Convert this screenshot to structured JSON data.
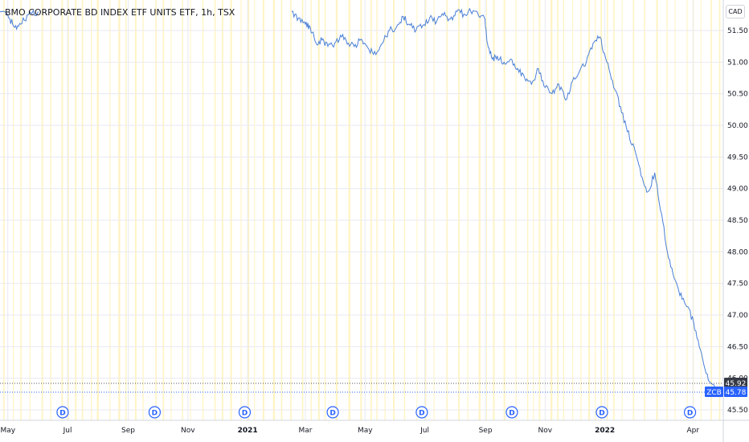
{
  "title": "BMO CORPORATE BD INDEX ETF UNITS ETF, 1h, TSX",
  "currency_button": "CAD",
  "ticker": "ZCB",
  "last_price_label": "45.78",
  "marker_price_label": "45.92",
  "dividend_marker_label": "D",
  "colors": {
    "line": "#4a7fd6",
    "grid": "#e8eaf0",
    "session_band": "#fff4c4",
    "ticker_bg": "#2962ff",
    "marker_bg": "#363a45"
  },
  "chart_data": {
    "type": "line",
    "title": "BMO CORPORATE BD INDEX ETF UNITS ETF, 1h, TSX",
    "xlabel": "",
    "ylabel": "",
    "ylim": [
      45.3,
      51.8
    ],
    "y_ticks": [
      "45.50",
      "46.00",
      "46.50",
      "47.00",
      "47.50",
      "48.00",
      "48.50",
      "49.00",
      "49.50",
      "50.00",
      "50.50",
      "51.00",
      "51.50"
    ],
    "x_ticks": [
      {
        "label": "May",
        "date": "2020-05",
        "bold": false
      },
      {
        "label": "Jul",
        "date": "2020-07",
        "bold": false
      },
      {
        "label": "Sep",
        "date": "2020-09",
        "bold": false
      },
      {
        "label": "Nov",
        "date": "2020-11",
        "bold": false
      },
      {
        "label": "2021",
        "date": "2021-01",
        "bold": true
      },
      {
        "label": "Mar",
        "date": "2021-03",
        "bold": false
      },
      {
        "label": "May",
        "date": "2021-05",
        "bold": false
      },
      {
        "label": "Jul",
        "date": "2021-07",
        "bold": false
      },
      {
        "label": "Sep",
        "date": "2021-09",
        "bold": false
      },
      {
        "label": "Nov",
        "date": "2021-11",
        "bold": false
      },
      {
        "label": "2022",
        "date": "2022-01",
        "bold": true
      },
      {
        "label": "Apr",
        "date": "2022-04",
        "bold": false
      }
    ],
    "grid": true,
    "dividend_dates": [
      "2020-06-26",
      "2020-09-28",
      "2020-12-29",
      "2021-03-29",
      "2021-06-28",
      "2021-09-28",
      "2021-12-29",
      "2022-03-29"
    ],
    "series": [
      {
        "name": "ZCB",
        "x": [
          "2020-04-23",
          "2020-05-02",
          "2020-05-08",
          "2020-05-14",
          "2020-05-22",
          "2020-06-01",
          "2021-02-15",
          "2021-02-22",
          "2021-03-01",
          "2021-03-06",
          "2021-03-12",
          "2021-03-18",
          "2021-03-24",
          "2021-03-31",
          "2021-04-07",
          "2021-04-14",
          "2021-04-21",
          "2021-04-28",
          "2021-05-05",
          "2021-05-12",
          "2021-05-19",
          "2021-05-26",
          "2021-06-02",
          "2021-06-09",
          "2021-06-15",
          "2021-06-22",
          "2021-06-29",
          "2021-07-06",
          "2021-07-13",
          "2021-07-20",
          "2021-07-27",
          "2021-08-03",
          "2021-08-10",
          "2021-08-17",
          "2021-08-24",
          "2021-08-31",
          "2021-09-03",
          "2021-09-08",
          "2021-09-13",
          "2021-09-20",
          "2021-09-27",
          "2021-10-04",
          "2021-10-11",
          "2021-10-18",
          "2021-10-25",
          "2021-11-01",
          "2021-11-08",
          "2021-11-15",
          "2021-11-22",
          "2021-11-29",
          "2021-12-06",
          "2021-12-13",
          "2021-12-20",
          "2021-12-27",
          "2022-01-03",
          "2022-01-10",
          "2022-01-17",
          "2022-01-24",
          "2022-01-31",
          "2022-02-07",
          "2022-02-14",
          "2022-02-21",
          "2022-02-28",
          "2022-03-07",
          "2022-03-14",
          "2022-03-21",
          "2022-03-28",
          "2022-04-04",
          "2022-04-11",
          "2022-04-18",
          "2022-04-25"
        ],
        "values": [
          51.8,
          51.7,
          51.55,
          51.6,
          51.75,
          51.8,
          51.8,
          51.7,
          51.6,
          51.55,
          51.3,
          51.35,
          51.25,
          51.3,
          51.4,
          51.3,
          51.28,
          51.35,
          51.2,
          51.12,
          51.3,
          51.5,
          51.55,
          51.72,
          51.6,
          51.5,
          51.58,
          51.7,
          51.64,
          51.74,
          51.68,
          51.8,
          51.76,
          51.8,
          51.78,
          51.7,
          51.3,
          51.05,
          51.1,
          51.0,
          51.05,
          50.9,
          50.75,
          50.65,
          50.9,
          50.6,
          50.5,
          50.65,
          50.4,
          50.7,
          50.85,
          51.0,
          51.3,
          51.4,
          51.0,
          50.6,
          50.3,
          49.9,
          49.65,
          49.2,
          48.95,
          49.25,
          48.6,
          47.9,
          47.55,
          47.25,
          47.1,
          46.75,
          46.3,
          45.95,
          45.78
        ]
      }
    ]
  }
}
